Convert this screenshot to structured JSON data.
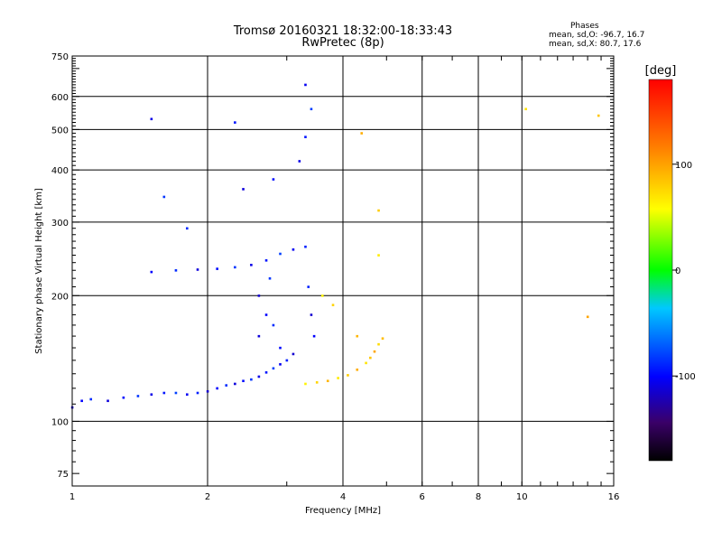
{
  "title_line1": "Tromsø 20160321 18:32:00-18:33:43",
  "title_line2": "RwPretec (8p)",
  "stats": {
    "header": "Phases",
    "line_o": "mean, sd,O: -96.7, 16.7",
    "line_x": "mean, sd,X:  80.7, 17.6"
  },
  "colorbar": {
    "label": "[deg]",
    "min": -180,
    "max": 180,
    "ticks": [
      100,
      0,
      -100
    ],
    "tick_labels": [
      "100",
      "0",
      "-100"
    ]
  },
  "chart_data": {
    "type": "scatter",
    "xlabel": "Frequency [MHz]",
    "ylabel": "Stationary phase Virtual Height [km]",
    "x_scale": "log",
    "y_scale": "log",
    "xlim": [
      1,
      16
    ],
    "ylim": [
      70,
      750
    ],
    "grid": true,
    "x_ticks": [
      1,
      2,
      4,
      6,
      8,
      10,
      16
    ],
    "x_tick_labels": [
      "1",
      "2",
      "4",
      "6",
      "8",
      "10",
      "16"
    ],
    "y_ticks": [
      75,
      100,
      200,
      300,
      400,
      500,
      600,
      750
    ],
    "y_tick_labels": [
      "75",
      "100",
      "200",
      "300",
      "400",
      "500",
      "600",
      "750"
    ],
    "color_by": "phase_deg",
    "series": [
      {
        "label": "O-mode",
        "phase_mean": -96.7,
        "phase_sd": 16.7,
        "points": [
          [
            1.0,
            108
          ],
          [
            1.05,
            112
          ],
          [
            1.1,
            113
          ],
          [
            1.2,
            112
          ],
          [
            1.3,
            114
          ],
          [
            1.4,
            115
          ],
          [
            1.5,
            116
          ],
          [
            1.6,
            117
          ],
          [
            1.7,
            117
          ],
          [
            1.8,
            116
          ],
          [
            1.9,
            117
          ],
          [
            2.0,
            118
          ],
          [
            2.1,
            120
          ],
          [
            2.2,
            122
          ],
          [
            2.3,
            123
          ],
          [
            2.4,
            125
          ],
          [
            2.5,
            126
          ],
          [
            2.6,
            128
          ],
          [
            2.7,
            131
          ],
          [
            2.8,
            134
          ],
          [
            2.9,
            137
          ],
          [
            3.0,
            140
          ],
          [
            3.1,
            145
          ],
          [
            1.5,
            228
          ],
          [
            1.7,
            230
          ],
          [
            1.9,
            231
          ],
          [
            2.1,
            232
          ],
          [
            2.3,
            234
          ],
          [
            2.5,
            237
          ],
          [
            2.7,
            243
          ],
          [
            2.9,
            252
          ],
          [
            3.1,
            258
          ],
          [
            3.3,
            262
          ],
          [
            2.6,
            200
          ],
          [
            2.7,
            180
          ],
          [
            2.8,
            170
          ],
          [
            2.6,
            160
          ],
          [
            2.9,
            150
          ],
          [
            2.75,
            220
          ],
          [
            3.2,
            420
          ],
          [
            3.3,
            480
          ],
          [
            3.4,
            560
          ],
          [
            3.3,
            640
          ],
          [
            3.35,
            210
          ],
          [
            3.4,
            180
          ],
          [
            3.45,
            160
          ],
          [
            1.8,
            290
          ],
          [
            2.4,
            360
          ],
          [
            2.8,
            380
          ],
          [
            1.6,
            345
          ],
          [
            1.5,
            530
          ],
          [
            2.3,
            520
          ]
        ]
      },
      {
        "label": "X-mode",
        "phase_mean": 80.7,
        "phase_sd": 17.6,
        "points": [
          [
            3.3,
            123
          ],
          [
            3.5,
            124
          ],
          [
            3.7,
            125
          ],
          [
            3.9,
            127
          ],
          [
            4.1,
            129
          ],
          [
            4.3,
            133
          ],
          [
            4.5,
            138
          ],
          [
            4.6,
            142
          ],
          [
            4.7,
            147
          ],
          [
            4.8,
            153
          ],
          [
            4.9,
            158
          ],
          [
            3.6,
            200
          ],
          [
            3.8,
            190
          ],
          [
            4.3,
            160
          ],
          [
            4.8,
            250
          ],
          [
            4.8,
            320
          ],
          [
            4.4,
            490
          ],
          [
            10.2,
            560
          ],
          [
            14.8,
            540
          ],
          [
            14.0,
            178
          ]
        ]
      }
    ]
  }
}
